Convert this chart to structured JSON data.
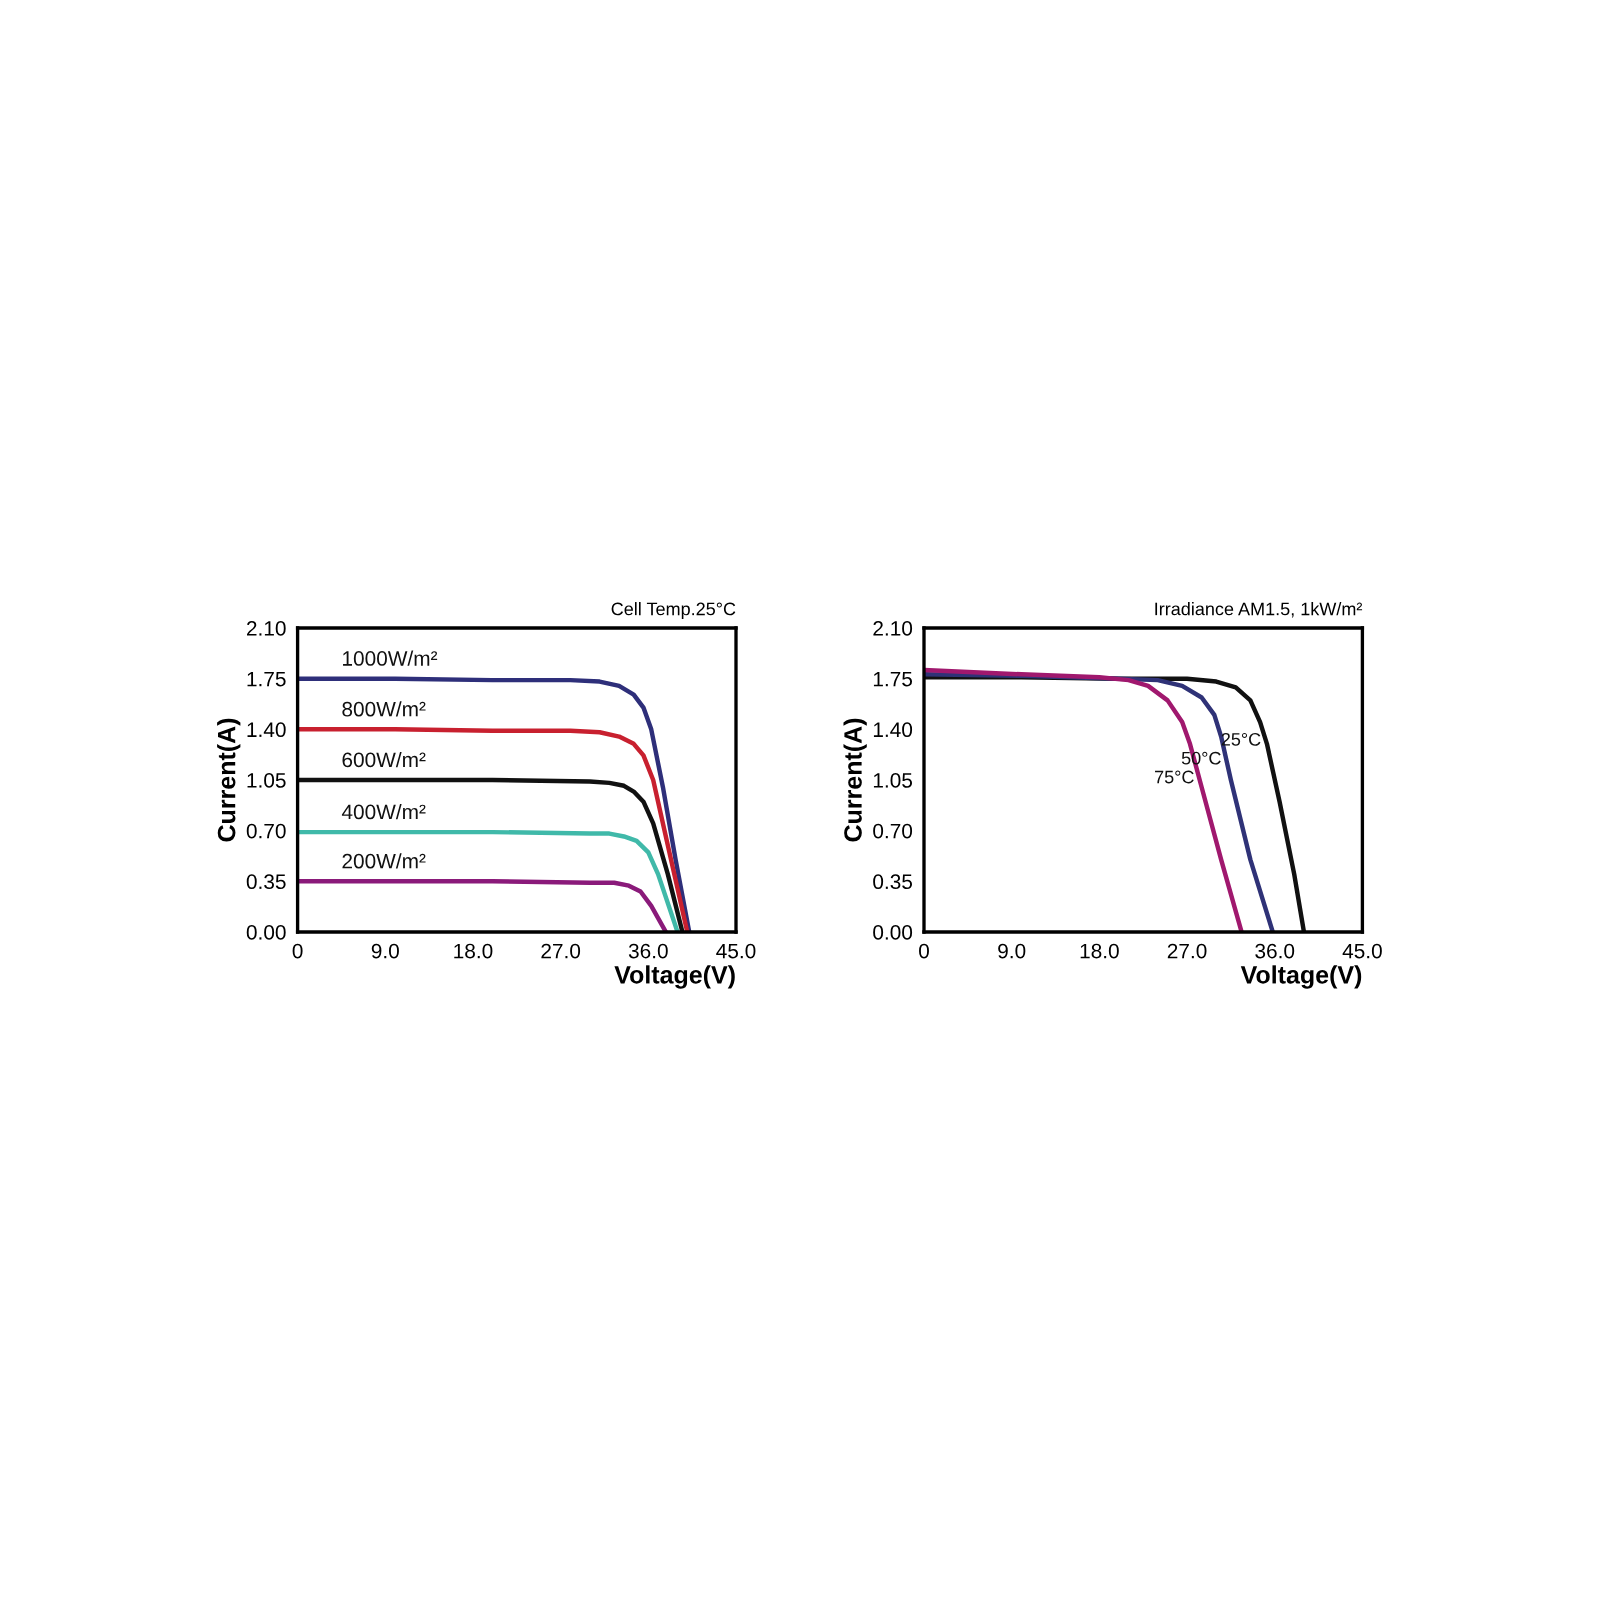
{
  "chart_data": [
    {
      "type": "line",
      "xlabel": "Voltage(V)",
      "ylabel": "Current(A)",
      "annotations": [
        "Cell Temp.25°C"
      ],
      "xlim": [
        0,
        45
      ],
      "ylim": [
        0,
        2.1
      ],
      "xticks": [
        0,
        {
          "value": 9,
          "label": "9.0"
        },
        {
          "value": 18,
          "label": "18.0"
        },
        {
          "value": 27,
          "label": "27.0"
        },
        {
          "value": 36,
          "label": "36.0"
        },
        {
          "value": 45,
          "label": "45.0"
        }
      ],
      "yticks": [
        {
          "value": 0,
          "label": "0.00"
        },
        {
          "value": 0.35,
          "label": "0.35"
        },
        {
          "value": 0.7,
          "label": "0.70"
        },
        {
          "value": 1.05,
          "label": "1.05"
        },
        {
          "value": 1.4,
          "label": "1.40"
        },
        {
          "value": 1.75,
          "label": "1.75"
        },
        {
          "value": 2.1,
          "label": "2.10"
        }
      ],
      "grid": false,
      "marker": "none",
      "line_style": "solid",
      "series": [
        {
          "name": "1000W/m²",
          "color": "#2e2f7a",
          "x": [
            0,
            10,
            20,
            28,
            31,
            33,
            34.5,
            35.5,
            36.3,
            37.5,
            38.8,
            40.2
          ],
          "values": [
            1.75,
            1.75,
            1.74,
            1.74,
            1.73,
            1.7,
            1.64,
            1.55,
            1.4,
            1.0,
            0.5,
            0
          ]
        },
        {
          "name": "800W/m²",
          "color": "#c8202f",
          "x": [
            0,
            10,
            20,
            28,
            31,
            33,
            34.5,
            35.5,
            36.5,
            38.0,
            40.0
          ],
          "values": [
            1.4,
            1.4,
            1.39,
            1.39,
            1.38,
            1.35,
            1.3,
            1.22,
            1.05,
            0.6,
            0
          ]
        },
        {
          "name": "600W/m²",
          "color": "#111111",
          "x": [
            0,
            20,
            30,
            32,
            33.5,
            34.5,
            35.5,
            36.5,
            38,
            39.5
          ],
          "values": [
            1.05,
            1.05,
            1.04,
            1.03,
            1.01,
            0.97,
            0.9,
            0.75,
            0.4,
            0
          ]
        },
        {
          "name": "400W/m²",
          "color": "#40b9a9",
          "x": [
            0,
            20,
            30,
            32,
            33.5,
            34.8,
            36,
            37,
            39
          ],
          "values": [
            0.69,
            0.69,
            0.68,
            0.68,
            0.66,
            0.63,
            0.55,
            0.4,
            0
          ]
        },
        {
          "name": "200W/m²",
          "color": "#8a1a7a",
          "x": [
            0,
            20,
            30,
            32.5,
            34,
            35.2,
            36.3,
            37.8
          ],
          "values": [
            0.35,
            0.35,
            0.34,
            0.34,
            0.32,
            0.28,
            0.18,
            0
          ]
        }
      ]
    },
    {
      "type": "line",
      "xlabel": "Voltage(V)",
      "ylabel": "Current(A)",
      "annotations": [
        "Irradiance AM1.5, 1kW/m²"
      ],
      "xlim": [
        0,
        45
      ],
      "ylim": [
        0,
        2.1
      ],
      "xticks": [
        0,
        {
          "value": 9,
          "label": "9.0"
        },
        {
          "value": 18,
          "label": "18.0"
        },
        {
          "value": 27,
          "label": "27.0"
        },
        {
          "value": 36,
          "label": "36.0"
        },
        {
          "value": 45,
          "label": "45.0"
        }
      ],
      "yticks": [
        {
          "value": 0,
          "label": "0.00"
        },
        {
          "value": 0.35,
          "label": "0.35"
        },
        {
          "value": 0.7,
          "label": "0.70"
        },
        {
          "value": 1.05,
          "label": "1.05"
        },
        {
          "value": 1.4,
          "label": "1.40"
        },
        {
          "value": 1.75,
          "label": "1.75"
        },
        {
          "value": 2.1,
          "label": "2.10"
        }
      ],
      "grid": false,
      "marker": "none",
      "line_style": "solid",
      "series": [
        {
          "name": "25°C",
          "color": "#111111",
          "x": [
            0,
            10,
            20,
            27,
            30,
            32,
            33.5,
            34.5,
            35.2,
            36.5,
            38,
            39
          ],
          "values": [
            1.76,
            1.76,
            1.75,
            1.75,
            1.73,
            1.69,
            1.6,
            1.45,
            1.3,
            0.9,
            0.4,
            0
          ]
        },
        {
          "name": "50°C",
          "color": "#2f3277",
          "x": [
            0,
            10,
            20,
            24,
            26.5,
            28.5,
            29.8,
            30.5,
            31.5,
            33.5,
            35.8
          ],
          "values": [
            1.78,
            1.77,
            1.75,
            1.74,
            1.7,
            1.62,
            1.5,
            1.35,
            1.05,
            0.5,
            0
          ]
        },
        {
          "name": "75°C",
          "color": "#a0186e",
          "x": [
            0,
            10,
            18,
            21,
            23,
            25,
            26.5,
            27.3,
            28.5,
            30.5,
            32.6
          ],
          "values": [
            1.81,
            1.78,
            1.76,
            1.74,
            1.7,
            1.6,
            1.45,
            1.3,
            1.0,
            0.5,
            0
          ]
        }
      ]
    }
  ]
}
